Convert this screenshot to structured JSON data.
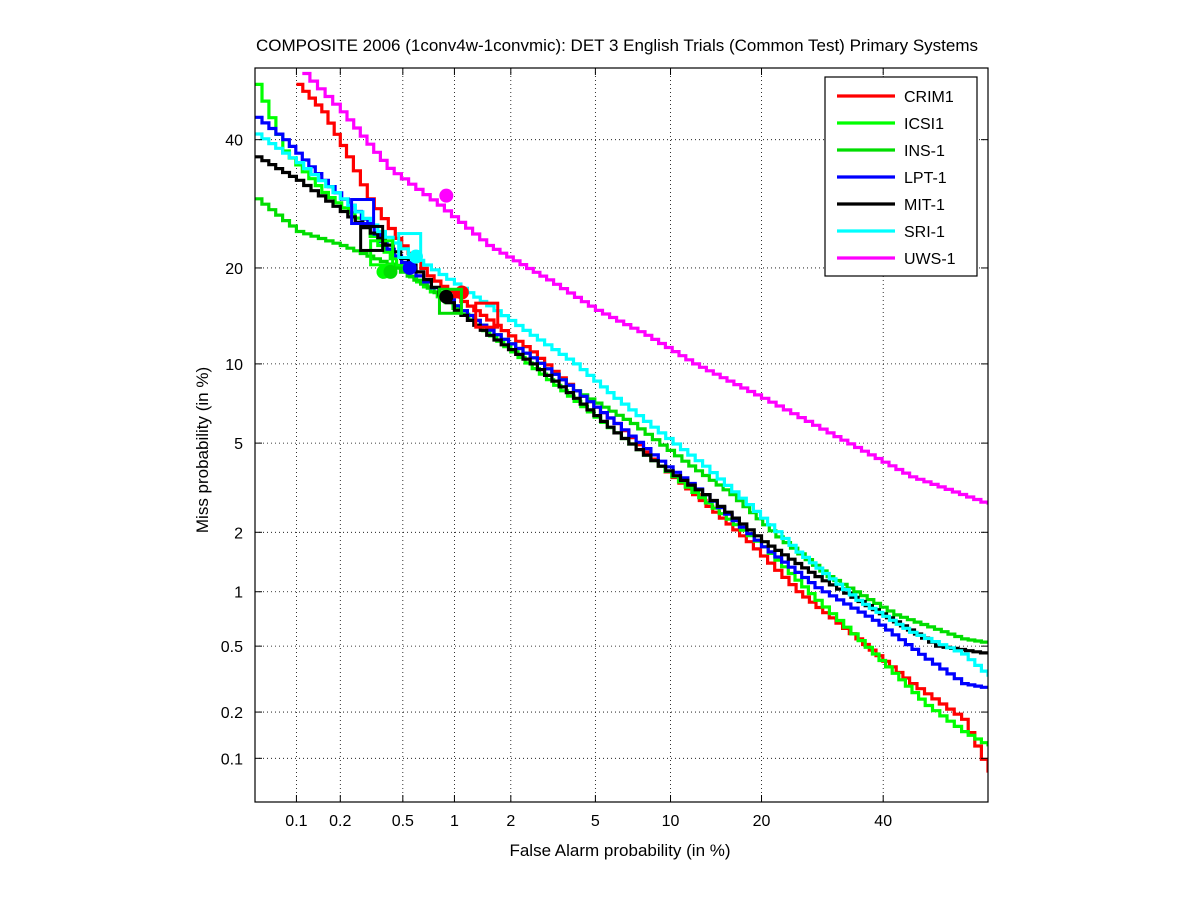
{
  "chart_data": {
    "type": "line",
    "title": "COMPOSITE 2006 (1conv4w-1convmic): DET 3 English Trials (Common Test) Primary Systems",
    "xlabel": "False Alarm probability (in %)",
    "ylabel": "Miss probability (in %)",
    "x_scale": "normal-deviate (probit)",
    "y_scale": "normal-deviate (probit)",
    "xlim": [
      0.05,
      60
    ],
    "ylim": [
      0.05,
      53
    ],
    "x_ticks": [
      0.1,
      0.2,
      0.5,
      1,
      2,
      5,
      10,
      20,
      40
    ],
    "x_tick_labels": [
      "0.1",
      "0.2",
      "0.5",
      "1",
      "2",
      "5",
      "10",
      "20",
      "40"
    ],
    "y_ticks": [
      0.1,
      0.2,
      0.5,
      1,
      2,
      5,
      10,
      20,
      40
    ],
    "y_tick_labels": [
      "0.1",
      "0.2",
      "0.5",
      "1",
      "2",
      "5",
      "10",
      "20",
      "40"
    ],
    "grid": "dotted",
    "legend_position": "top-right",
    "series": [
      {
        "name": "CRIM1",
        "color": "#ff0000",
        "points": [
          [
            0.1,
            50
          ],
          [
            0.15,
            45
          ],
          [
            0.22,
            37
          ],
          [
            0.3,
            30
          ],
          [
            0.45,
            24
          ],
          [
            0.7,
            19
          ],
          [
            1.0,
            16.5
          ],
          [
            1.5,
            14
          ],
          [
            2.5,
            11
          ],
          [
            4,
            8
          ],
          [
            6,
            6
          ],
          [
            9,
            4
          ],
          [
            12,
            3
          ],
          [
            18,
            1.8
          ],
          [
            25,
            1.0
          ],
          [
            35,
            0.55
          ],
          [
            45,
            0.3
          ],
          [
            55,
            0.18
          ],
          [
            60,
            0.08
          ]
        ],
        "marker_dot": [
          1.1,
          17
        ],
        "marker_box": [
          1.5,
          14.5
        ]
      },
      {
        "name": "ICSI1",
        "color": "#00ff00",
        "points": [
          [
            0.05,
            50
          ],
          [
            0.08,
            38
          ],
          [
            0.15,
            31
          ],
          [
            0.25,
            27
          ],
          [
            0.35,
            23
          ],
          [
            0.5,
            19.5
          ],
          [
            0.8,
            16.5
          ],
          [
            1.2,
            14
          ],
          [
            2,
            11
          ],
          [
            3.5,
            8
          ],
          [
            6,
            5.5
          ],
          [
            9,
            4
          ],
          [
            14,
            2.6
          ],
          [
            20,
            1.7
          ],
          [
            28,
            0.9
          ],
          [
            38,
            0.45
          ],
          [
            48,
            0.22
          ],
          [
            55,
            0.15
          ],
          [
            60,
            0.12
          ]
        ],
        "marker_dot": [
          0.38,
          19.5
        ],
        "marker_box": [
          0.37,
          22
        ]
      },
      {
        "name": "INS-1",
        "color": "#00dd00",
        "points": [
          [
            0.05,
            30
          ],
          [
            0.1,
            25
          ],
          [
            0.2,
            23
          ],
          [
            0.4,
            20.5
          ],
          [
            0.7,
            17.5
          ],
          [
            1.0,
            15.5
          ],
          [
            1.5,
            13
          ],
          [
            2.5,
            10.5
          ],
          [
            4,
            8
          ],
          [
            7,
            6
          ],
          [
            11,
            4.2
          ],
          [
            16,
            3.0
          ],
          [
            22,
            1.9
          ],
          [
            30,
            1.2
          ],
          [
            42,
            0.75
          ],
          [
            55,
            0.55
          ],
          [
            60,
            0.52
          ]
        ],
        "marker_dot": [
          0.42,
          19.5
        ],
        "marker_box": [
          0.95,
          16
        ]
      },
      {
        "name": "LPT-1",
        "color": "#0000ff",
        "points": [
          [
            0.05,
            44
          ],
          [
            0.08,
            40
          ],
          [
            0.15,
            33
          ],
          [
            0.25,
            28
          ],
          [
            0.4,
            22.5
          ],
          [
            0.6,
            19
          ],
          [
            1.0,
            15.5
          ],
          [
            1.5,
            13
          ],
          [
            2.5,
            10.5
          ],
          [
            4,
            8
          ],
          [
            6,
            6
          ],
          [
            9,
            4.2
          ],
          [
            13,
            3.0
          ],
          [
            20,
            1.7
          ],
          [
            28,
            1.05
          ],
          [
            38,
            0.7
          ],
          [
            48,
            0.42
          ],
          [
            55,
            0.3
          ],
          [
            60,
            0.28
          ]
        ],
        "marker_dot": [
          0.55,
          20
        ],
        "marker_box": [
          0.28,
          28
        ]
      },
      {
        "name": "MIT-1",
        "color": "#000000",
        "points": [
          [
            0.05,
            37
          ],
          [
            0.1,
            33
          ],
          [
            0.2,
            28
          ],
          [
            0.35,
            24
          ],
          [
            0.6,
            19.5
          ],
          [
            1.0,
            15
          ],
          [
            1.5,
            12.5
          ],
          [
            2.5,
            10
          ],
          [
            4,
            7.5
          ],
          [
            6,
            5.5
          ],
          [
            9,
            4
          ],
          [
            13,
            3.0
          ],
          [
            20,
            1.8
          ],
          [
            28,
            1.2
          ],
          [
            38,
            0.8
          ],
          [
            50,
            0.5
          ],
          [
            60,
            0.45
          ]
        ],
        "marker_dot": [
          0.9,
          16.5
        ],
        "marker_box": [
          0.32,
          24
        ]
      },
      {
        "name": "SRI-1",
        "color": "#00ffff",
        "points": [
          [
            0.05,
            41
          ],
          [
            0.1,
            36
          ],
          [
            0.2,
            30
          ],
          [
            0.35,
            25
          ],
          [
            0.6,
            21
          ],
          [
            1.0,
            18
          ],
          [
            1.5,
            15.5
          ],
          [
            2.5,
            12.5
          ],
          [
            4,
            10
          ],
          [
            6,
            7.5
          ],
          [
            9,
            5.5
          ],
          [
            13,
            4.0
          ],
          [
            18,
            2.7
          ],
          [
            25,
            1.6
          ],
          [
            35,
            0.9
          ],
          [
            45,
            0.6
          ],
          [
            55,
            0.45
          ],
          [
            60,
            0.33
          ]
        ],
        "marker_dot": [
          0.6,
          21.5
        ],
        "marker_box": [
          0.55,
          23
        ]
      },
      {
        "name": "UWS-1",
        "color": "#ff00ff",
        "points": [
          [
            0.11,
            52
          ],
          [
            0.2,
            45
          ],
          [
            0.4,
            35
          ],
          [
            0.8,
            29
          ],
          [
            1.5,
            23
          ],
          [
            3,
            18.5
          ],
          [
            5,
            15
          ],
          [
            8,
            12.5
          ],
          [
            12,
            10
          ],
          [
            20,
            7.5
          ],
          [
            30,
            5.5
          ],
          [
            45,
            3.6
          ],
          [
            60,
            2.7
          ]
        ],
        "marker_dot": [
          0.9,
          30.5
        ]
      }
    ]
  }
}
